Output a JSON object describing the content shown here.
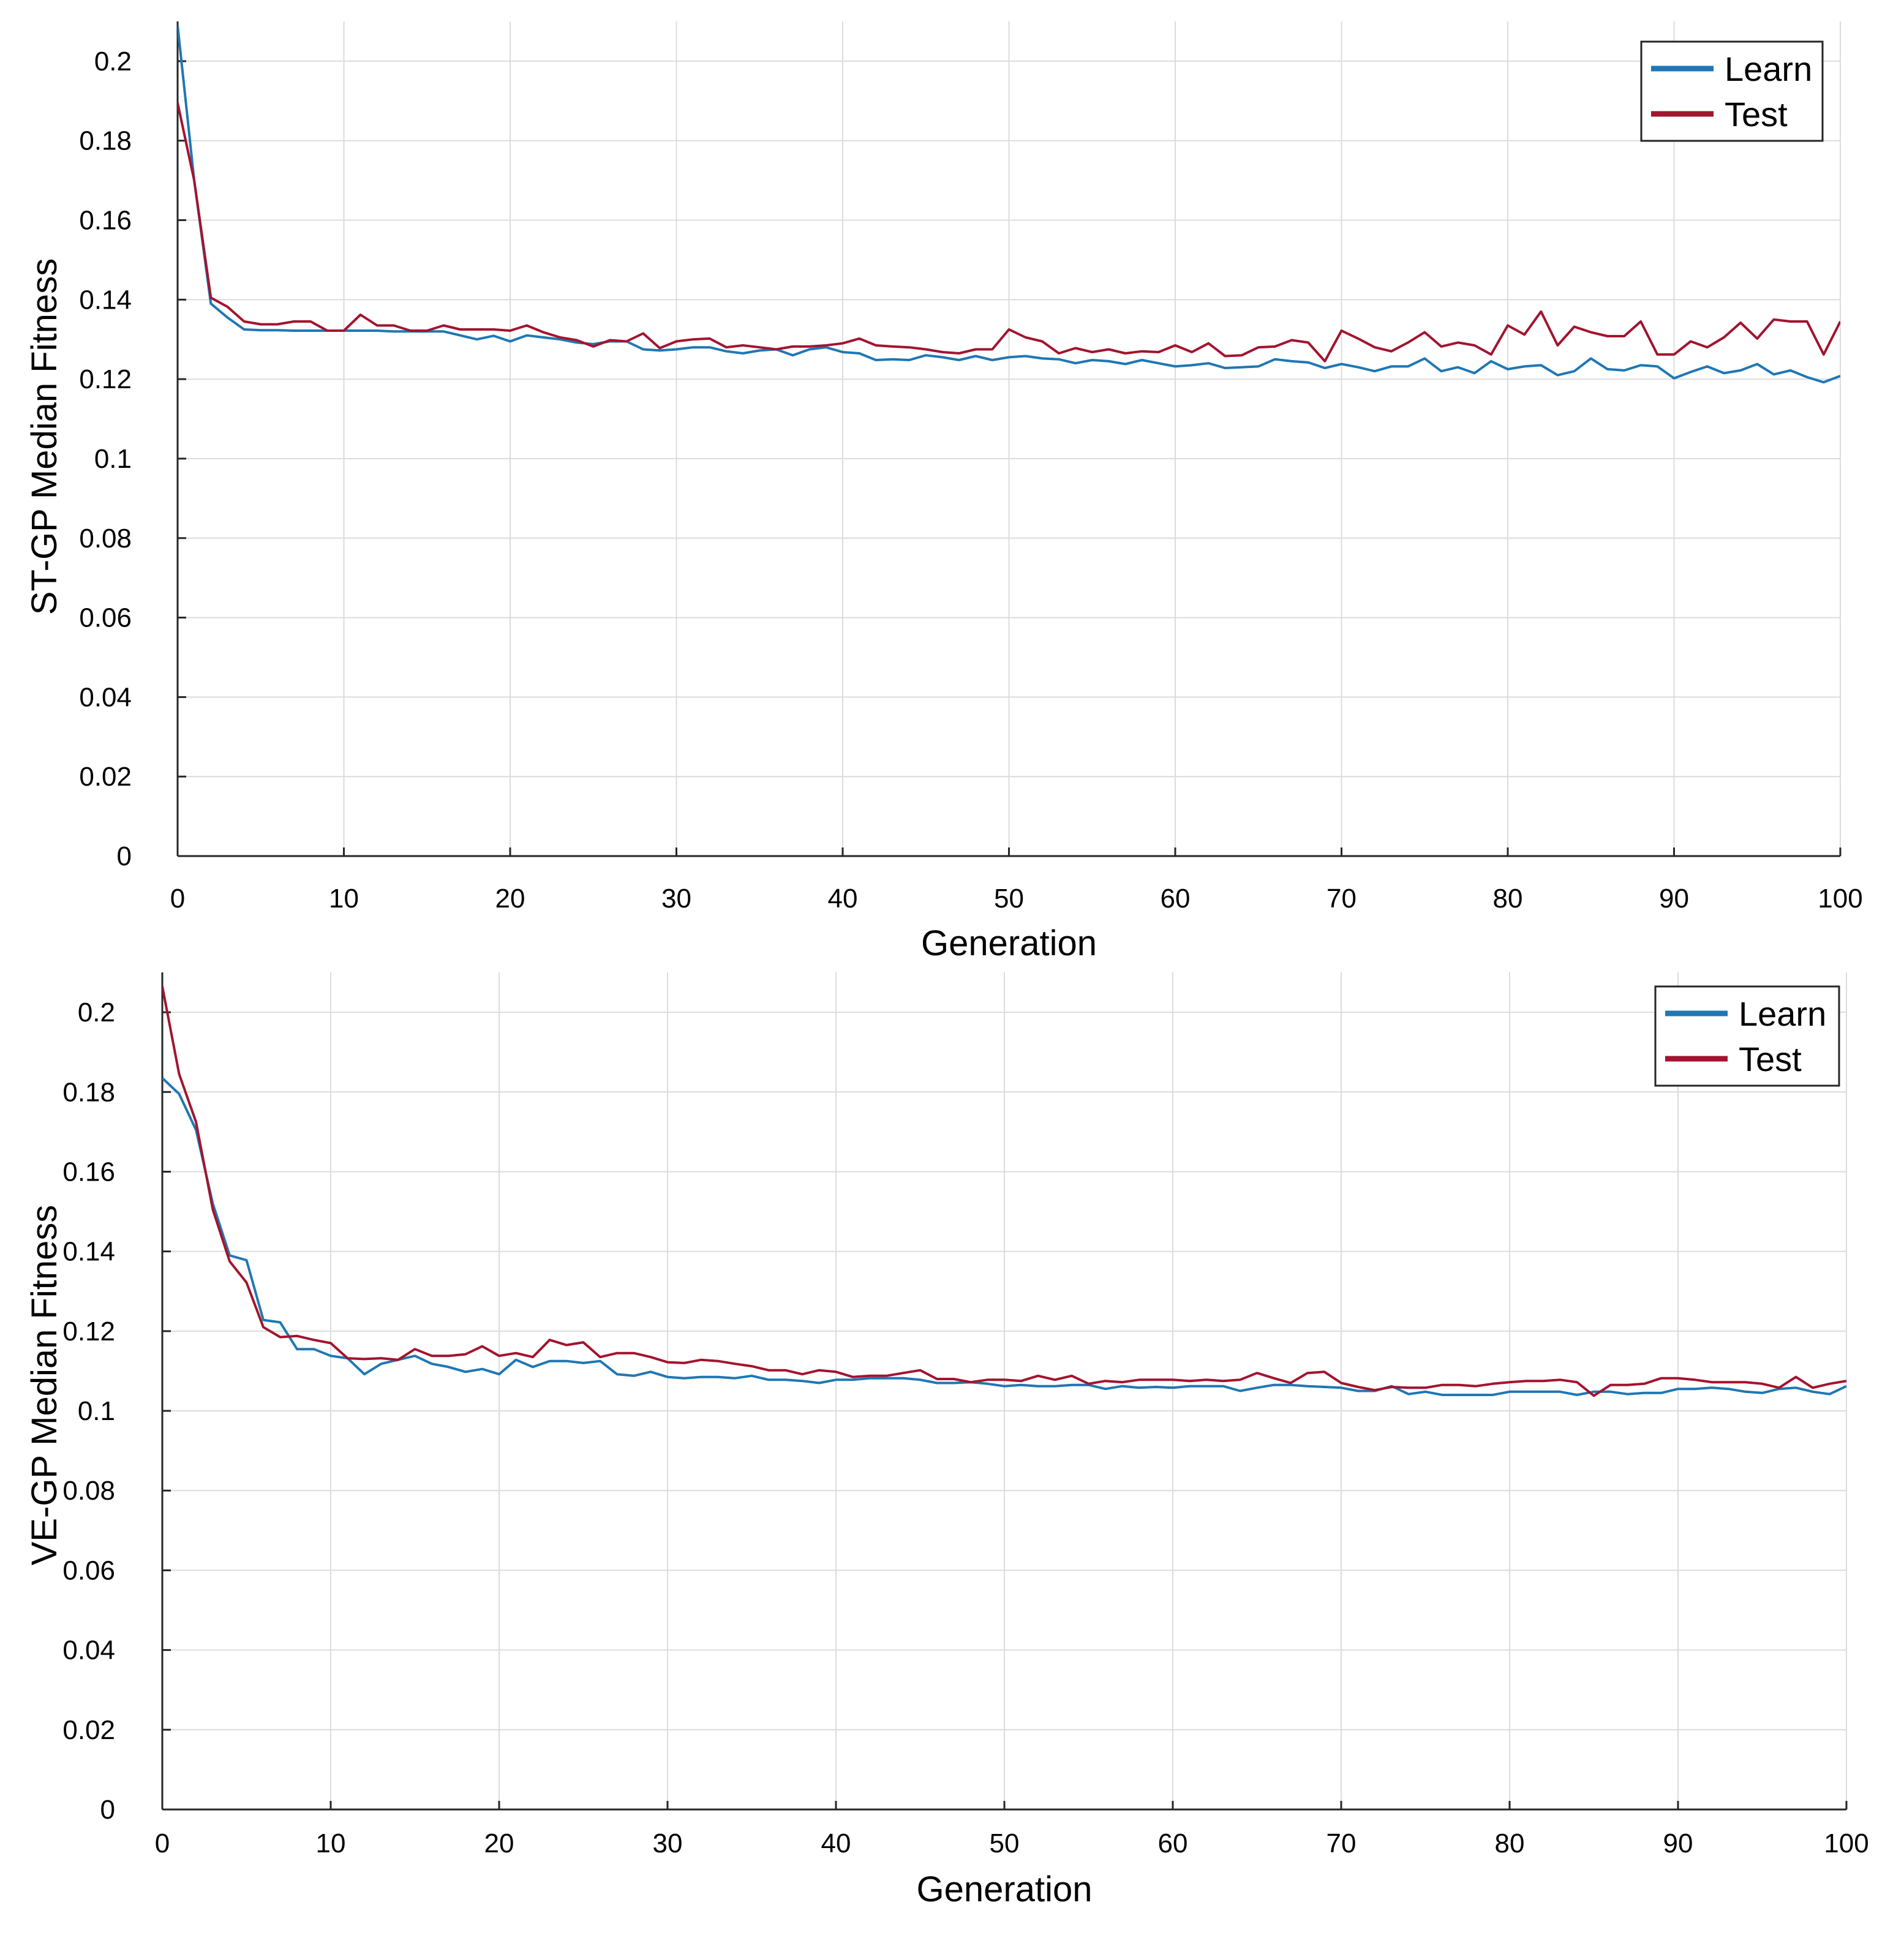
{
  "colors": {
    "learn": "#1f77b4",
    "test": "#a2142f",
    "grid": "#dcdcdc",
    "axis": "#262626"
  },
  "chart_data": [
    {
      "type": "line",
      "xlabel": "Generation",
      "ylabel": "ST-GP Median Fitness",
      "xlim": [
        0,
        100
      ],
      "ylim": [
        0,
        0.21
      ],
      "xticks": [
        0,
        10,
        20,
        30,
        40,
        50,
        60,
        70,
        80,
        90,
        100
      ],
      "xtick_labels": [
        "0",
        "10",
        "20",
        "30",
        "40",
        "50",
        "60",
        "70",
        "80",
        "90",
        "100"
      ],
      "yticks": [
        0,
        0.02,
        0.04,
        0.06,
        0.08,
        0.1,
        0.12,
        0.14,
        0.16,
        0.18,
        0.2
      ],
      "ytick_labels": [
        "0",
        "0.02",
        "0.04",
        "0.06",
        "0.08",
        "0.1",
        "0.12",
        "0.14",
        "0.16",
        "0.18",
        "0.2"
      ],
      "grid": true,
      "legend": {
        "position": "top-right",
        "entries": [
          "Learn",
          "Test"
        ]
      },
      "series": [
        {
          "name": "Learn",
          "color": "#1f77b4",
          "values": [
            0.209,
            0.17,
            0.139,
            0.1355,
            0.1325,
            0.1323,
            0.1323,
            0.1322,
            0.1322,
            0.1322,
            0.1322,
            0.1322,
            0.1322,
            0.132,
            0.132,
            0.132,
            0.132,
            0.131,
            0.13,
            0.1309,
            0.1295,
            0.131,
            0.1305,
            0.13,
            0.1292,
            0.1288,
            0.1295,
            0.1295,
            0.1275,
            0.1272,
            0.1275,
            0.128,
            0.128,
            0.127,
            0.1265,
            0.1272,
            0.1275,
            0.126,
            0.1275,
            0.128,
            0.1268,
            0.1265,
            0.1248,
            0.125,
            0.1248,
            0.126,
            0.1255,
            0.1248,
            0.1258,
            0.1248,
            0.1255,
            0.1258,
            0.1252,
            0.125,
            0.124,
            0.1248,
            0.1245,
            0.1238,
            0.1248,
            0.124,
            0.1232,
            0.1235,
            0.124,
            0.1228,
            0.123,
            0.1232,
            0.125,
            0.1245,
            0.1242,
            0.1228,
            0.1238,
            0.123,
            0.122,
            0.1232,
            0.1232,
            0.1252,
            0.122,
            0.123,
            0.1215,
            0.1245,
            0.1225,
            0.1232,
            0.1235,
            0.121,
            0.122,
            0.1252,
            0.1225,
            0.1222,
            0.1235,
            0.1232,
            0.1202,
            0.1218,
            0.1232,
            0.1215,
            0.1222,
            0.1238,
            0.1212,
            0.1222,
            0.1205,
            0.1192,
            0.1208
          ]
        },
        {
          "name": "Test",
          "color": "#a2142f",
          "values": [
            0.1895,
            0.17,
            0.1405,
            0.1382,
            0.1345,
            0.1338,
            0.1338,
            0.1345,
            0.1345,
            0.1322,
            0.1322,
            0.1362,
            0.1335,
            0.1335,
            0.1322,
            0.1322,
            0.1335,
            0.1325,
            0.1325,
            0.1325,
            0.1322,
            0.1335,
            0.1318,
            0.1305,
            0.1298,
            0.1282,
            0.1298,
            0.1295,
            0.1315,
            0.1278,
            0.1295,
            0.13,
            0.1302,
            0.128,
            0.1285,
            0.128,
            0.1275,
            0.1282,
            0.1282,
            0.1285,
            0.129,
            0.1302,
            0.1285,
            0.1282,
            0.128,
            0.1275,
            0.1268,
            0.1265,
            0.1275,
            0.1275,
            0.1325,
            0.1305,
            0.1295,
            0.1265,
            0.1278,
            0.1268,
            0.1275,
            0.1265,
            0.127,
            0.1268,
            0.1285,
            0.1268,
            0.129,
            0.1258,
            0.126,
            0.128,
            0.1282,
            0.1298,
            0.1292,
            0.1245,
            0.1322,
            0.1302,
            0.128,
            0.127,
            0.1292,
            0.1318,
            0.1282,
            0.1292,
            0.1285,
            0.1262,
            0.1335,
            0.1312,
            0.137,
            0.1285,
            0.1332,
            0.1318,
            0.1308,
            0.1308,
            0.1345,
            0.1262,
            0.1262,
            0.1295,
            0.128,
            0.1305,
            0.1342,
            0.1302,
            0.135,
            0.1345,
            0.1345,
            0.1262,
            0.1345
          ]
        }
      ]
    },
    {
      "type": "line",
      "xlabel": "Generation",
      "ylabel": "VE-GP Median Fitness",
      "xlim": [
        0,
        100
      ],
      "ylim": [
        0,
        0.21
      ],
      "xticks": [
        0,
        10,
        20,
        30,
        40,
        50,
        60,
        70,
        80,
        90,
        100
      ],
      "xtick_labels": [
        "0",
        "10",
        "20",
        "30",
        "40",
        "50",
        "60",
        "70",
        "80",
        "90",
        "100"
      ],
      "yticks": [
        0,
        0.02,
        0.04,
        0.06,
        0.08,
        0.1,
        0.12,
        0.14,
        0.16,
        0.18,
        0.2
      ],
      "ytick_labels": [
        "0",
        "0.02",
        "0.04",
        "0.06",
        "0.08",
        "0.1",
        "0.12",
        "0.14",
        "0.16",
        "0.18",
        "0.2"
      ],
      "grid": true,
      "legend": {
        "position": "top-right",
        "entries": [
          "Learn",
          "Test"
        ]
      },
      "series": [
        {
          "name": "Learn",
          "color": "#1f77b4",
          "values": [
            0.1835,
            0.1795,
            0.1705,
            0.152,
            0.139,
            0.1378,
            0.1228,
            0.1222,
            0.1155,
            0.1155,
            0.1138,
            0.1132,
            0.1092,
            0.1118,
            0.1128,
            0.1138,
            0.1118,
            0.111,
            0.1098,
            0.1105,
            0.1092,
            0.1128,
            0.111,
            0.1125,
            0.1125,
            0.112,
            0.1125,
            0.1092,
            0.1088,
            0.1098,
            0.1085,
            0.1082,
            0.1085,
            0.1085,
            0.1082,
            0.1088,
            0.1078,
            0.1078,
            0.1075,
            0.107,
            0.1078,
            0.1078,
            0.1082,
            0.1082,
            0.1082,
            0.1078,
            0.107,
            0.107,
            0.1072,
            0.1068,
            0.1062,
            0.1065,
            0.1062,
            0.1062,
            0.1065,
            0.1065,
            0.1055,
            0.1062,
            0.1058,
            0.106,
            0.1058,
            0.1062,
            0.1062,
            0.1062,
            0.105,
            0.1058,
            0.1065,
            0.1065,
            0.1062,
            0.106,
            0.1058,
            0.105,
            0.105,
            0.1062,
            0.1042,
            0.1048,
            0.104,
            0.104,
            0.104,
            0.104,
            0.1048,
            0.1048,
            0.1048,
            0.1048,
            0.104,
            0.1048,
            0.1048,
            0.1042,
            0.1045,
            0.1045,
            0.1055,
            0.1055,
            0.1058,
            0.1055,
            0.1048,
            0.1045,
            0.1055,
            0.1058,
            0.1048,
            0.1042,
            0.1062
          ]
        },
        {
          "name": "Test",
          "color": "#a2142f",
          "values": [
            0.2065,
            0.1845,
            0.1725,
            0.1505,
            0.1375,
            0.1322,
            0.121,
            0.1185,
            0.1188,
            0.1178,
            0.117,
            0.1132,
            0.113,
            0.1132,
            0.1128,
            0.1155,
            0.1138,
            0.1138,
            0.1142,
            0.1162,
            0.1138,
            0.1145,
            0.1135,
            0.1178,
            0.1165,
            0.1172,
            0.1135,
            0.1145,
            0.1145,
            0.1135,
            0.1122,
            0.112,
            0.1128,
            0.1125,
            0.1118,
            0.1112,
            0.1102,
            0.1102,
            0.1092,
            0.1102,
            0.1098,
            0.1085,
            0.1088,
            0.1088,
            0.1095,
            0.1102,
            0.108,
            0.108,
            0.1072,
            0.1078,
            0.1078,
            0.1075,
            0.1088,
            0.1078,
            0.1088,
            0.1068,
            0.1075,
            0.1072,
            0.1078,
            0.1078,
            0.1078,
            0.1075,
            0.1078,
            0.1075,
            0.1078,
            0.1095,
            0.1082,
            0.107,
            0.1095,
            0.1098,
            0.107,
            0.106,
            0.1052,
            0.106,
            0.1058,
            0.1058,
            0.1065,
            0.1065,
            0.1062,
            0.1068,
            0.1072,
            0.1075,
            0.1075,
            0.1078,
            0.1072,
            0.1038,
            0.1065,
            0.1065,
            0.1068,
            0.1082,
            0.1082,
            0.1078,
            0.1072,
            0.1072,
            0.1072,
            0.1068,
            0.1058,
            0.1085,
            0.1058,
            0.1068,
            0.1075
          ]
        }
      ]
    }
  ]
}
